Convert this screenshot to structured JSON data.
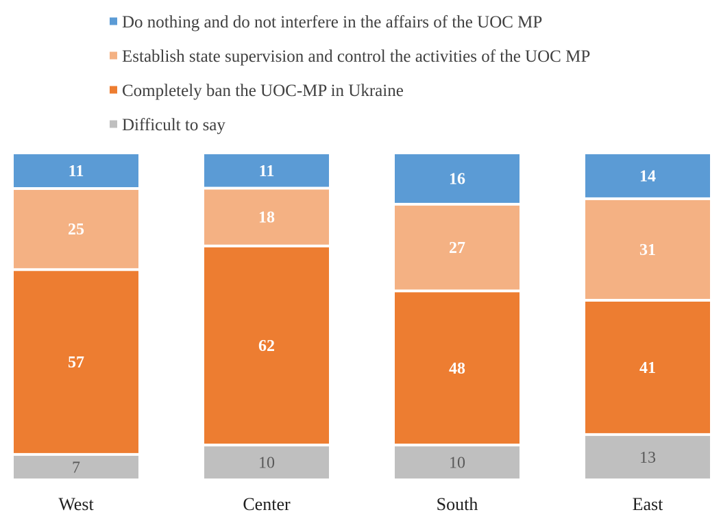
{
  "chart_data": {
    "type": "bar",
    "stacked": true,
    "normalized": true,
    "categories": [
      "West",
      "Center",
      "South",
      "East"
    ],
    "series": [
      {
        "name": "Do nothing and do not interfere in the affairs of the UOC MP",
        "color": "#5b9bd5",
        "values": [
          11,
          11,
          16,
          14
        ]
      },
      {
        "name": "Establish state supervision and control the activities of the UOC MP",
        "color": "#f4b183",
        "values": [
          25,
          18,
          27,
          31
        ]
      },
      {
        "name": "Completely ban the UOC-MP in Ukraine",
        "color": "#ed7d31",
        "values": [
          57,
          62,
          48,
          41
        ]
      },
      {
        "name": "Difficult to say",
        "color": "#bfbfbf",
        "values": [
          7,
          10,
          10,
          13
        ]
      }
    ],
    "legend_position": "top",
    "grid": false
  }
}
